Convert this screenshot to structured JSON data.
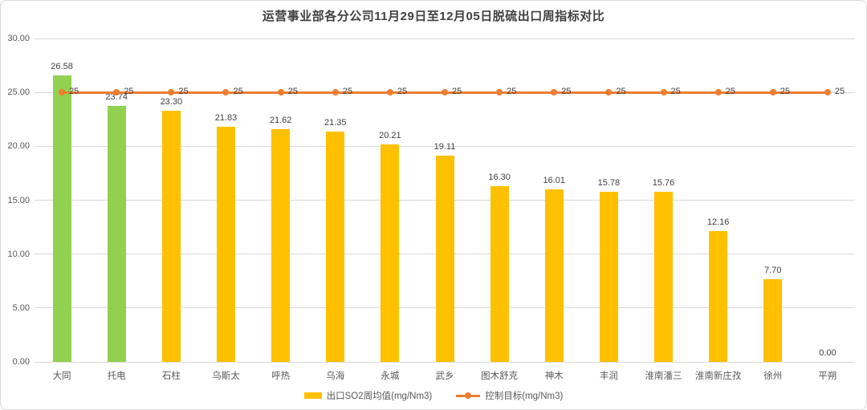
{
  "title": "运营事业部各分公司11月29日至12月05日脱硫出口周指标对比",
  "colors": {
    "bar_default": "#FFC000",
    "bar_highlight": "#92D050",
    "line": "#ED7D31",
    "gridline": "#D9D9D9",
    "axis_text": "#595959",
    "data_label": "#404040",
    "title_text": "#404040",
    "border": "#D9D9D9",
    "background": "#FFFFFF"
  },
  "chart_data": {
    "type": "bar",
    "title": "运营事业部各分公司11月29日至12月05日脱硫出口周指标对比",
    "categories": [
      "大同",
      "托电",
      "石柱",
      "乌斯太",
      "呼热",
      "乌海",
      "永城",
      "武乡",
      "图木舒克",
      "神木",
      "丰润",
      "淮南潘三",
      "淮南新庄孜",
      "徐州",
      "平朔"
    ],
    "series": [
      {
        "name": "出口SO2周均值(mg/Nm3)",
        "type": "bar",
        "values": [
          26.58,
          23.74,
          23.3,
          21.83,
          21.62,
          21.35,
          20.21,
          19.11,
          16.3,
          16.01,
          15.78,
          15.76,
          12.16,
          7.7,
          0.0
        ],
        "value_labels": [
          "26.58",
          "23.74",
          "23.30",
          "21.83",
          "21.62",
          "21.35",
          "20.21",
          "19.11",
          "16.30",
          "16.01",
          "15.78",
          "15.76",
          "12.16",
          "7.70",
          "0.00"
        ],
        "highlight_indices": [
          0,
          1
        ]
      },
      {
        "name": "控制目标(mg/Nm3)",
        "type": "line",
        "values": [
          25,
          25,
          25,
          25,
          25,
          25,
          25,
          25,
          25,
          25,
          25,
          25,
          25,
          25,
          25
        ],
        "value_labels": [
          "25",
          "25",
          "25",
          "25",
          "25",
          "25",
          "25",
          "25",
          "25",
          "25",
          "25",
          "25",
          "25",
          "25",
          "25"
        ]
      }
    ],
    "xlabel": "",
    "ylabel": "",
    "ylim": [
      0,
      30
    ],
    "ytick_values": [
      0,
      5,
      10,
      15,
      20,
      25,
      30
    ],
    "ytick_labels": [
      "0.00",
      "5.00",
      "10.00",
      "15.00",
      "20.00",
      "25.00",
      "30.00"
    ],
    "grid": true,
    "legend_position": "bottom"
  },
  "legend": {
    "items": [
      {
        "label": "出口SO2周均值(mg/Nm3)",
        "swatch": "bar"
      },
      {
        "label": "控制目标(mg/Nm3)",
        "swatch": "line-marker"
      }
    ]
  }
}
